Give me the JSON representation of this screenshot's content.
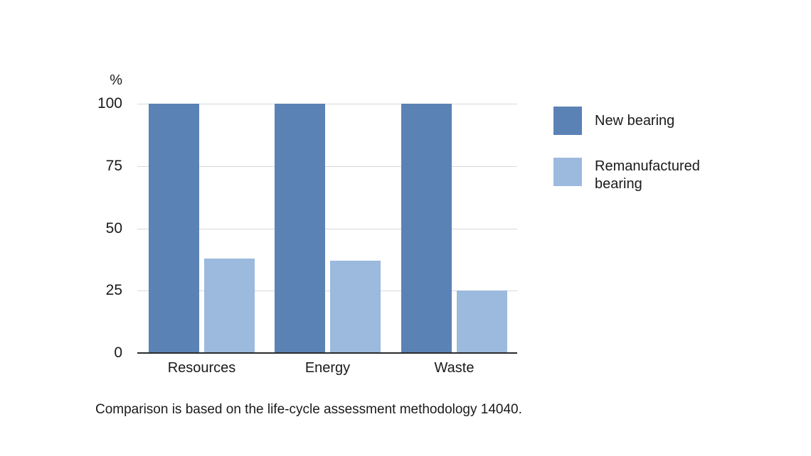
{
  "chart_data": {
    "type": "bar",
    "title": "",
    "xlabel": "",
    "ylabel": "%",
    "categories": [
      "Resources",
      "Energy",
      "Waste"
    ],
    "series": [
      {
        "name": "New bearing",
        "color": "#5b82b5",
        "values": [
          100,
          100,
          100
        ]
      },
      {
        "name": "Remanufactured bearing",
        "color": "#9bbadd",
        "values": [
          38,
          37,
          25
        ]
      }
    ],
    "ylim": [
      0,
      100
    ],
    "yticks": [
      0,
      25,
      50,
      75,
      100
    ],
    "grid": true,
    "legend_position": "right",
    "gridline_color": "#d9d9d9",
    "axis_line_color": "#2b2b2b",
    "text_color": "#1a1a1a"
  },
  "caption": "Comparison is based on the life-cycle assessment methodology 14040."
}
